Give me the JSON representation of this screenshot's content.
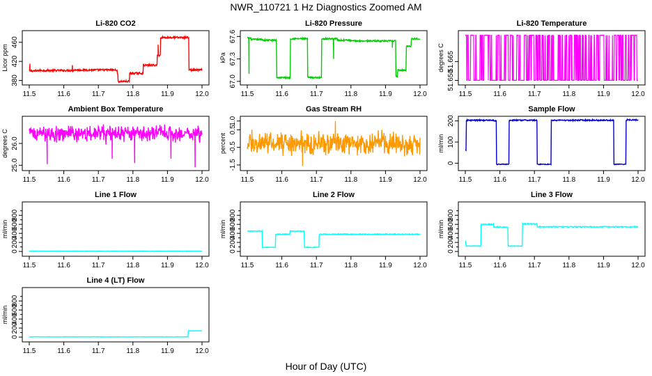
{
  "figure": {
    "title": "NWR_110721  1 Hz Diagnostics Zoomed AM",
    "xlabel": "Hour of Day (UTC)"
  },
  "chart_data": [
    {
      "type": "line",
      "title": "Li-820 CO2",
      "ylabel": "Licor ppm",
      "color": "#ff0000",
      "xlim": [
        11.5,
        12.0
      ],
      "xticks": [
        "11.5",
        "11.6",
        "11.7",
        "11.8",
        "11.9",
        "12.0"
      ],
      "ylim": [
        375,
        480
      ],
      "yticks": [
        380,
        420,
        460
      ],
      "ytick_labels": [
        "380",
        "420",
        "460"
      ],
      "steps": [
        [
          11.5,
          400,
          2
        ],
        [
          11.525,
          401,
          2
        ],
        [
          11.625,
          400,
          2
        ],
        [
          11.628,
          402,
          2
        ],
        [
          11.755,
          392,
          2
        ],
        [
          11.757,
          378,
          2
        ],
        [
          11.79,
          395,
          2
        ],
        [
          11.83,
          412,
          2
        ],
        [
          11.87,
          433,
          2
        ],
        [
          11.88,
          470,
          2
        ],
        [
          11.962,
          402,
          2
        ],
        [
          12.0,
          402,
          2
        ]
      ],
      "spikes": [
        [
          11.502,
          415
        ],
        [
          11.625,
          412
        ],
        [
          11.873,
          455
        ]
      ]
    },
    {
      "type": "line",
      "title": "Li-820 Pressure",
      "ylabel": "kPa",
      "color": "#00cc00",
      "xlim": [
        11.5,
        12.0
      ],
      "xticks": [
        "11.5",
        "11.6",
        "11.7",
        "11.8",
        "11.9",
        "12.0"
      ],
      "ylim": [
        66.98,
        67.65
      ],
      "yticks": [
        67.0,
        67.3,
        67.6
      ],
      "ytick_labels": [
        "67.0",
        "67.3",
        "67.6"
      ],
      "steps": [
        [
          11.5,
          67.58,
          0.01
        ],
        [
          11.51,
          67.56,
          0.01
        ],
        [
          11.545,
          67.55,
          0.01
        ],
        [
          11.585,
          67.05,
          0.01
        ],
        [
          11.625,
          67.57,
          0.01
        ],
        [
          11.675,
          67.05,
          0.01
        ],
        [
          11.71,
          67.05,
          0.01
        ],
        [
          11.715,
          67.57,
          0.01
        ],
        [
          11.76,
          67.55,
          0.01
        ],
        [
          11.8,
          67.54,
          0.01
        ],
        [
          11.93,
          67.07,
          0.01
        ],
        [
          11.935,
          67.15,
          0.01
        ],
        [
          11.96,
          67.47,
          0.01
        ],
        [
          11.975,
          67.57,
          0.01
        ],
        [
          12.0,
          67.57,
          0.01
        ]
      ],
      "spikes": [
        [
          11.505,
          67.1
        ],
        [
          11.75,
          67.3
        ],
        [
          11.92,
          67.45
        ]
      ]
    },
    {
      "type": "line",
      "title": "Li-820 Temperature",
      "ylabel": "degrees C",
      "color": "#ff00ff",
      "xlim": [
        11.5,
        12.0
      ],
      "xticks": [
        "11.5",
        "11.6",
        "11.7",
        "11.8",
        "11.9",
        "12.0"
      ],
      "ylim": [
        51.648,
        51.688
      ],
      "yticks": [
        51.65,
        51.665
      ],
      "ytick_labels": [
        "51.650",
        "51.665"
      ],
      "binary": [
        51.65,
        51.686
      ],
      "toggle_prob": 0.35
    },
    {
      "type": "line",
      "title": "Ambient Box Temperature",
      "ylabel": "degrees C",
      "color": "#ff00ff",
      "xlim": [
        11.5,
        12.0
      ],
      "xticks": [
        "11.5",
        "11.6",
        "11.7",
        "11.8",
        "11.9",
        "12.0"
      ],
      "ylim": [
        24.85,
        27.15
      ],
      "yticks": [
        25.0,
        26.0
      ],
      "ytick_labels": [
        "25.0",
        "26.0"
      ],
      "noise": [
        26.45,
        0.22
      ],
      "spikes": [
        [
          11.552,
          25.05
        ],
        [
          11.74,
          25.3
        ],
        [
          11.805,
          25.1
        ],
        [
          11.91,
          25.3
        ],
        [
          11.98,
          24.9
        ]
      ]
    },
    {
      "type": "line",
      "title": "Gas Stream RH",
      "ylabel": "percent",
      "color": "#ff9900",
      "xlim": [
        11.5,
        12.0
      ],
      "xticks": [
        "11.5",
        "11.6",
        "11.7",
        "11.8",
        "11.9",
        "12.0"
      ],
      "ylim": [
        -1.7,
        1.15
      ],
      "yticks": [
        -1.5,
        -0.5,
        0.5
      ],
      "ytick_labels": [
        "-1.5",
        "-0.5",
        "0.5"
      ],
      "ytick_right": [
        1.0
      ],
      "ytick_right_labels": [
        "1.0"
      ],
      "noise": [
        -0.25,
        0.38
      ],
      "spikes": [
        [
          11.66,
          -1.55
        ],
        [
          11.755,
          1.0
        ]
      ]
    },
    {
      "type": "line",
      "title": "Sample Flow",
      "ylabel": "ml/min",
      "color": "#0000cc",
      "xlim": [
        11.5,
        12.0
      ],
      "xticks": [
        "11.5",
        "11.6",
        "11.7",
        "11.8",
        "11.9",
        "12.0"
      ],
      "ylim": [
        -25,
        212
      ],
      "yticks": [
        0,
        100,
        200
      ],
      "ytick_labels": [
        "0",
        "100",
        "200"
      ],
      "steps": [
        [
          11.5,
          60,
          2
        ],
        [
          11.503,
          203,
          3
        ],
        [
          11.582,
          200,
          3
        ],
        [
          11.59,
          -5,
          2
        ],
        [
          11.627,
          203,
          3
        ],
        [
          11.708,
          -5,
          2
        ],
        [
          11.748,
          203,
          3
        ],
        [
          11.93,
          -5,
          2
        ],
        [
          11.965,
          205,
          3
        ],
        [
          12.0,
          205,
          3
        ]
      ]
    },
    {
      "type": "line",
      "title": "Line 1 Flow",
      "ylabel": "ml/min",
      "color": "#00ffff",
      "xlim": [
        11.5,
        12.0
      ],
      "xticks": [
        "11.5",
        "11.6",
        "11.7",
        "11.8",
        "11.9",
        "12.0"
      ],
      "ylim": [
        -60,
        1050
      ],
      "yticks": [
        0,
        200,
        400,
        600,
        800
      ],
      "ytick_labels": [
        "0",
        "200",
        "400",
        "600",
        "800"
      ],
      "steps": [
        [
          11.5,
          5,
          5
        ],
        [
          12.0,
          5,
          5
        ]
      ]
    },
    {
      "type": "line",
      "title": "Line 2 Flow",
      "ylabel": "ml/min",
      "color": "#00ffff",
      "xlim": [
        11.5,
        12.0
      ],
      "xticks": [
        "11.5",
        "11.6",
        "11.7",
        "11.8",
        "11.9",
        "12.0"
      ],
      "ylim": [
        -60,
        1050
      ],
      "yticks": [
        0,
        200,
        400,
        600,
        800
      ],
      "ytick_labels": [
        "0",
        "200",
        "400",
        "600",
        "800"
      ],
      "steps": [
        [
          11.5,
          450,
          8
        ],
        [
          11.54,
          450,
          8
        ],
        [
          11.543,
          90,
          6
        ],
        [
          11.582,
          380,
          10
        ],
        [
          11.623,
          450,
          8
        ],
        [
          11.665,
          90,
          6
        ],
        [
          11.708,
          380,
          10
        ],
        [
          12.0,
          380,
          10
        ]
      ]
    },
    {
      "type": "line",
      "title": "Line 3 Flow",
      "ylabel": "ml/min",
      "color": "#00ffff",
      "xlim": [
        11.5,
        12.0
      ],
      "xticks": [
        "11.5",
        "11.6",
        "11.7",
        "11.8",
        "11.9",
        "12.0"
      ],
      "ylim": [
        -60,
        1050
      ],
      "yticks": [
        0,
        200,
        400,
        600,
        800
      ],
      "ytick_labels": [
        "0",
        "200",
        "400",
        "600",
        "800"
      ],
      "steps": [
        [
          11.5,
          230,
          8
        ],
        [
          11.502,
          120,
          6
        ],
        [
          11.545,
          600,
          10
        ],
        [
          11.582,
          540,
          10
        ],
        [
          11.623,
          120,
          6
        ],
        [
          11.665,
          610,
          10
        ],
        [
          11.708,
          545,
          10
        ],
        [
          12.0,
          545,
          10
        ]
      ]
    },
    {
      "type": "line",
      "title": "Line 4 (LT) Flow",
      "ylabel": "ml/min",
      "color": "#00ffff",
      "xlim": [
        11.5,
        12.0
      ],
      "xticks": [
        "11.5",
        "11.6",
        "11.7",
        "11.8",
        "11.9",
        "12.0"
      ],
      "ylim": [
        -60,
        1050
      ],
      "yticks": [
        0,
        200,
        400,
        600,
        800
      ],
      "ytick_labels": [
        "0",
        "200",
        "400",
        "600",
        "800"
      ],
      "steps": [
        [
          11.5,
          5,
          3
        ],
        [
          11.96,
          140,
          4
        ],
        [
          12.0,
          140,
          4
        ]
      ]
    }
  ]
}
